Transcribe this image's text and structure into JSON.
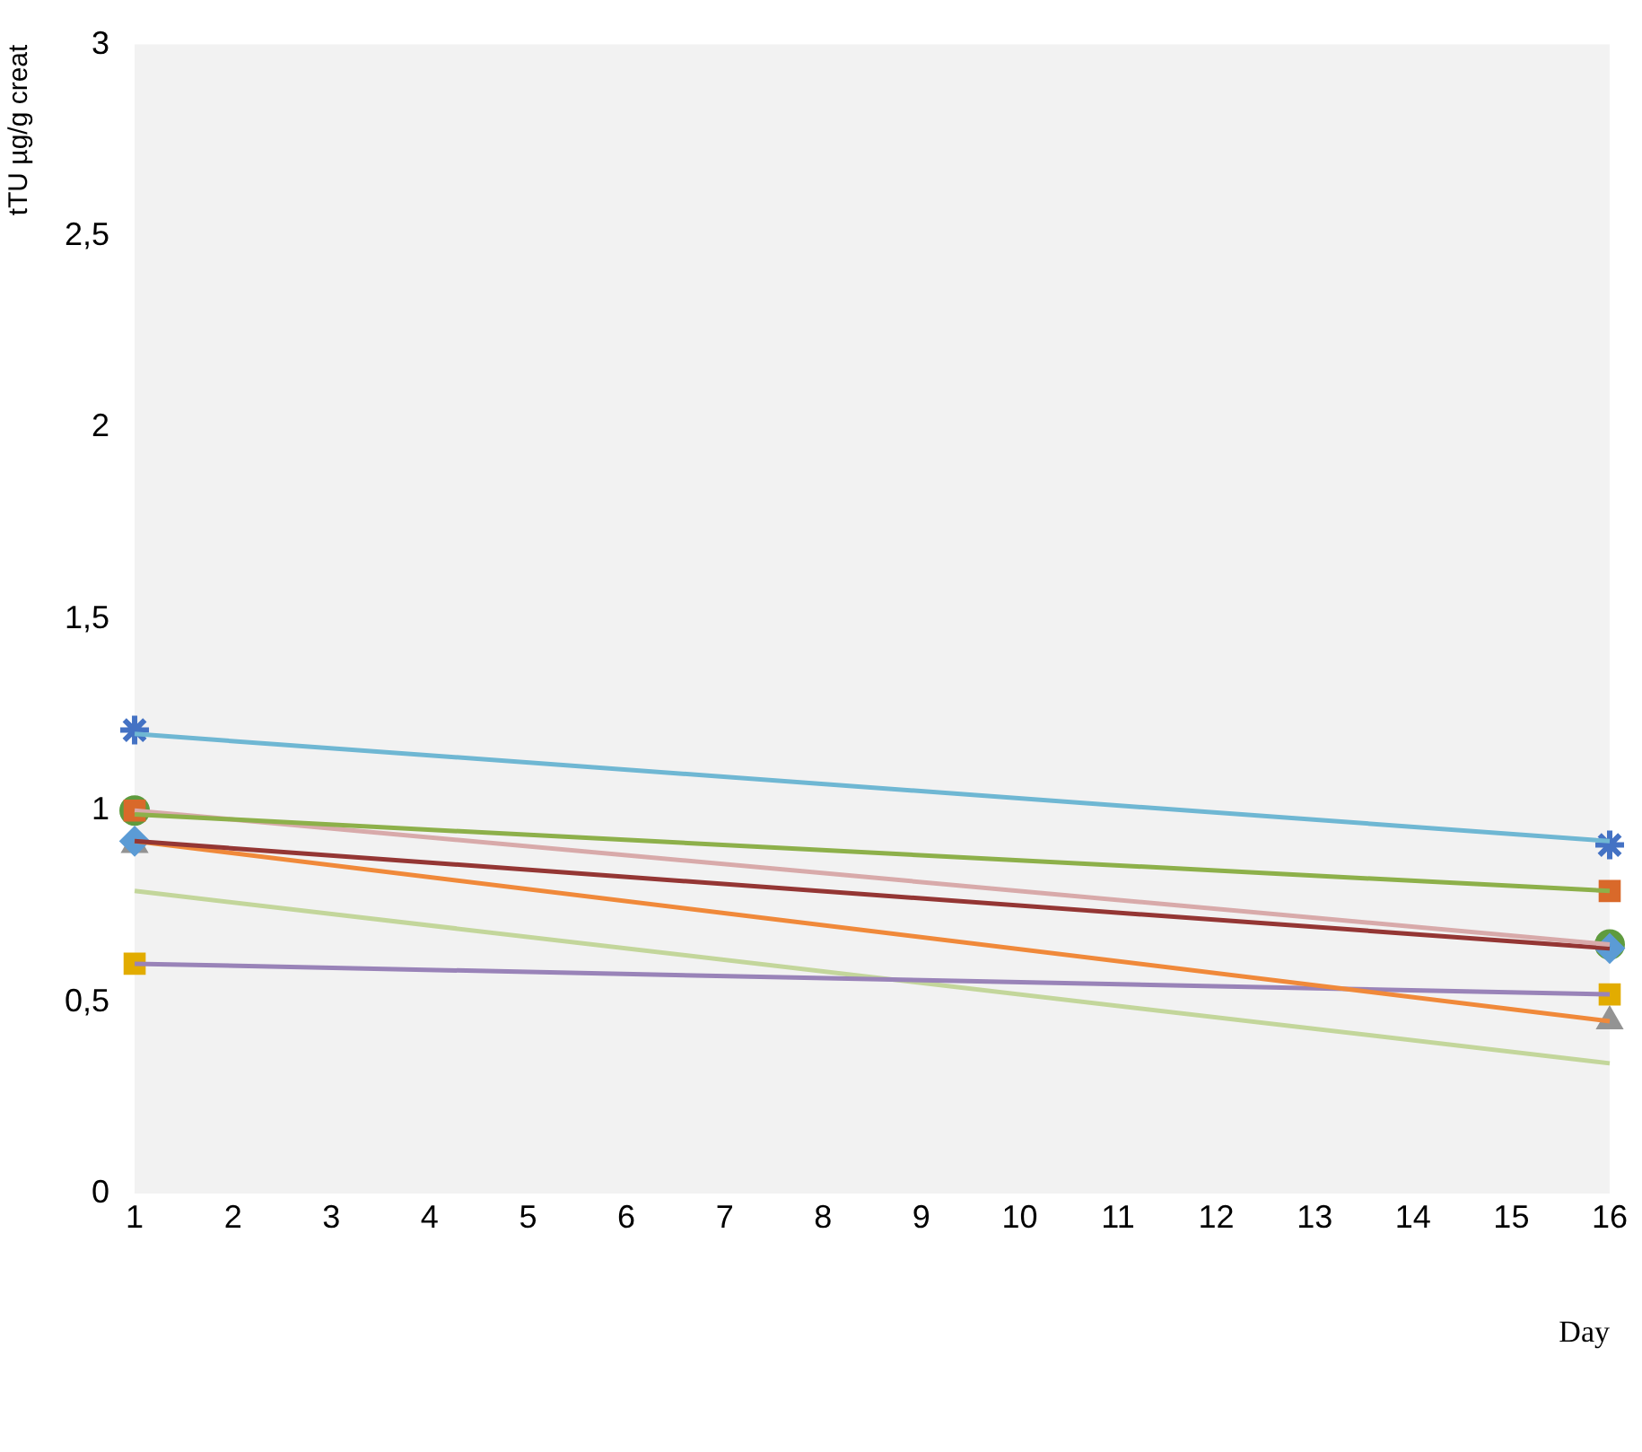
{
  "chart_data": {
    "type": "scatter",
    "xlabel": "Day",
    "ylabel": "tTU µg/g creat",
    "x": [
      1,
      16
    ],
    "xlim": [
      1,
      16
    ],
    "xticks": [
      1,
      2,
      3,
      4,
      5,
      6,
      7,
      8,
      9,
      10,
      11,
      12,
      13,
      14,
      15,
      16
    ],
    "ylim": [
      0,
      3
    ],
    "yticks": [
      0,
      {
        "value": 0.5,
        "label": "0,5"
      },
      1,
      {
        "value": 1.5,
        "label": "1,5"
      },
      2,
      {
        "value": 2.5,
        "label": "2,5"
      },
      3
    ],
    "grid": false,
    "legend": false,
    "series": [
      {
        "type": "line",
        "marker": "none",
        "color": "#6fb7d3",
        "values": [
          1.2,
          0.92
        ]
      },
      {
        "type": "line",
        "marker": "none",
        "color": "#8db04a",
        "values": [
          0.99,
          0.79
        ]
      },
      {
        "type": "line",
        "marker": "none",
        "color": "#d8aaaa",
        "values": [
          1.0,
          0.65
        ]
      },
      {
        "type": "line",
        "marker": "none",
        "color": "#943634",
        "values": [
          0.92,
          0.64
        ]
      },
      {
        "type": "line",
        "marker": "none",
        "color": "#f0893a",
        "values": [
          0.92,
          0.45
        ]
      },
      {
        "type": "line",
        "marker": "none",
        "color": "#9983b8",
        "values": [
          0.6,
          0.52
        ]
      },
      {
        "type": "line",
        "marker": "none",
        "color": "#c3d69b",
        "values": [
          0.79,
          0.34
        ]
      },
      {
        "marker": "cross",
        "color": "#4472c4",
        "values": [
          1.21,
          0.91
        ]
      },
      {
        "marker": "square",
        "color": "#d9692a",
        "values": [
          1.0,
          0.79
        ]
      },
      {
        "marker": "diamond",
        "color": "#5b9bd5",
        "values": [
          0.92,
          0.64
        ]
      },
      {
        "marker": "triangle",
        "color": "#939393",
        "values": [
          0.91,
          0.45
        ]
      },
      {
        "marker": "circle",
        "color": "#5f9b3e",
        "values": [
          1.0,
          0.65
        ]
      },
      {
        "marker": "square",
        "color": "#e2ac00",
        "values": [
          0.6,
          0.52
        ]
      }
    ]
  }
}
